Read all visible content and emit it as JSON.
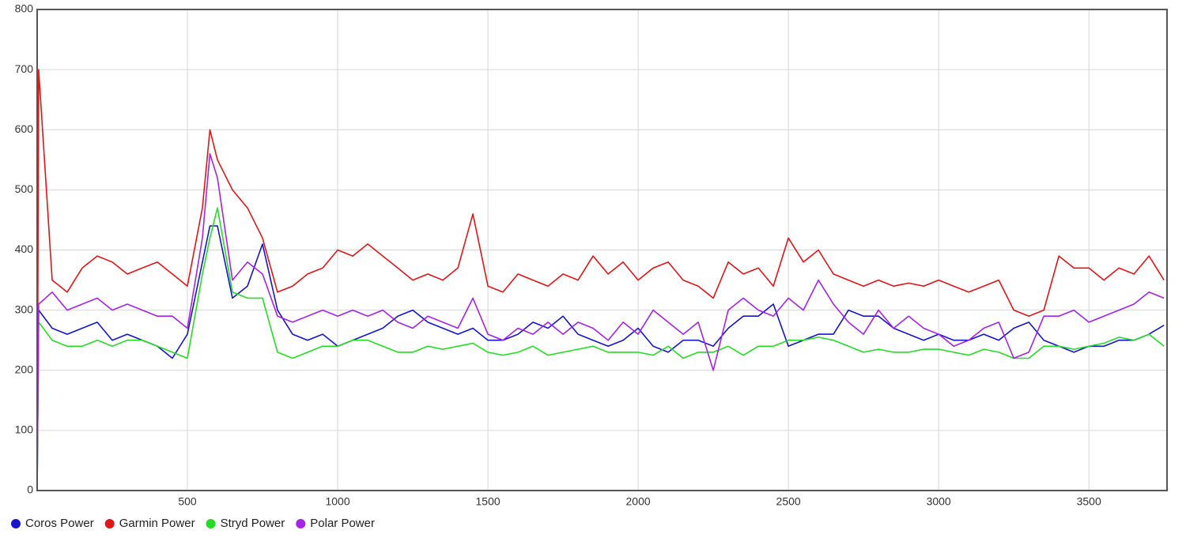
{
  "chart_data": {
    "type": "line",
    "x": [
      0,
      5,
      50,
      100,
      150,
      200,
      250,
      300,
      350,
      400,
      450,
      500,
      550,
      575,
      600,
      650,
      700,
      750,
      800,
      850,
      900,
      950,
      1000,
      1050,
      1100,
      1150,
      1200,
      1250,
      1300,
      1350,
      1400,
      1450,
      1500,
      1550,
      1600,
      1650,
      1700,
      1750,
      1800,
      1850,
      1900,
      1950,
      2000,
      2050,
      2100,
      2150,
      2200,
      2250,
      2300,
      2350,
      2400,
      2450,
      2500,
      2550,
      2600,
      2650,
      2700,
      2750,
      2800,
      2850,
      2900,
      2950,
      3000,
      3050,
      3100,
      3150,
      3200,
      3250,
      3300,
      3350,
      3400,
      3450,
      3500,
      3550,
      3600,
      3650,
      3700,
      3750
    ],
    "series": [
      {
        "name": "Coros Power",
        "color": "#1515cc",
        "values": [
          0,
          300,
          270,
          260,
          270,
          280,
          250,
          260,
          250,
          240,
          220,
          260,
          380,
          440,
          440,
          320,
          340,
          410,
          300,
          260,
          250,
          260,
          240,
          250,
          260,
          270,
          290,
          300,
          280,
          270,
          260,
          270,
          250,
          250,
          260,
          280,
          270,
          290,
          260,
          250,
          240,
          250,
          270,
          240,
          230,
          250,
          250,
          240,
          270,
          290,
          290,
          310,
          240,
          250,
          260,
          260,
          300,
          290,
          290,
          270,
          260,
          250,
          260,
          250,
          250,
          260,
          250,
          270,
          280,
          250,
          240,
          230,
          240,
          240,
          250,
          250,
          260,
          275
        ]
      },
      {
        "name": "Garmin Power",
        "color": "#e01515",
        "values": [
          0,
          700,
          350,
          330,
          370,
          390,
          380,
          360,
          370,
          380,
          360,
          340,
          470,
          600,
          550,
          500,
          470,
          420,
          330,
          340,
          360,
          370,
          400,
          390,
          410,
          390,
          370,
          350,
          360,
          350,
          370,
          460,
          340,
          330,
          360,
          350,
          340,
          360,
          350,
          390,
          360,
          380,
          350,
          370,
          380,
          350,
          340,
          320,
          380,
          360,
          370,
          340,
          420,
          380,
          400,
          360,
          350,
          340,
          350,
          340,
          345,
          340,
          350,
          340,
          330,
          340,
          350,
          300,
          290,
          300,
          390,
          370,
          370,
          350,
          370,
          360,
          390,
          350
        ]
      },
      {
        "name": "Stryd Power",
        "color": "#22dd22",
        "values": [
          0,
          280,
          250,
          240,
          240,
          250,
          240,
          250,
          250,
          240,
          230,
          220,
          360,
          420,
          470,
          330,
          320,
          320,
          230,
          220,
          230,
          240,
          240,
          250,
          250,
          240,
          230,
          230,
          240,
          235,
          240,
          245,
          230,
          225,
          230,
          240,
          225,
          230,
          235,
          240,
          230,
          230,
          230,
          225,
          240,
          220,
          230,
          230,
          240,
          225,
          240,
          240,
          250,
          250,
          255,
          250,
          240,
          230,
          235,
          230,
          230,
          235,
          235,
          230,
          225,
          235,
          230,
          220,
          220,
          240,
          240,
          235,
          240,
          245,
          255,
          250,
          260,
          240
        ]
      },
      {
        "name": "Polar Power",
        "color": "#a522e6",
        "values": [
          0,
          310,
          330,
          300,
          310,
          320,
          300,
          310,
          300,
          290,
          290,
          270,
          420,
          560,
          520,
          350,
          380,
          360,
          290,
          280,
          290,
          300,
          290,
          300,
          290,
          300,
          280,
          270,
          290,
          280,
          270,
          320,
          260,
          250,
          270,
          260,
          280,
          260,
          280,
          270,
          250,
          280,
          260,
          300,
          280,
          260,
          280,
          200,
          300,
          320,
          300,
          290,
          320,
          300,
          350,
          310,
          280,
          260,
          300,
          270,
          290,
          270,
          260,
          240,
          250,
          270,
          280,
          220,
          230,
          290,
          290,
          300,
          280,
          290,
          300,
          310,
          330,
          320
        ]
      }
    ],
    "xlim": [
      0,
      3760
    ],
    "xticks": [
      500,
      1000,
      1500,
      2000,
      2500,
      3000,
      3500
    ],
    "ylim": [
      0,
      800
    ],
    "yticks": [
      0,
      100,
      200,
      300,
      400,
      500,
      600,
      700,
      800
    ],
    "grid": true,
    "legend": "bottom-left"
  }
}
